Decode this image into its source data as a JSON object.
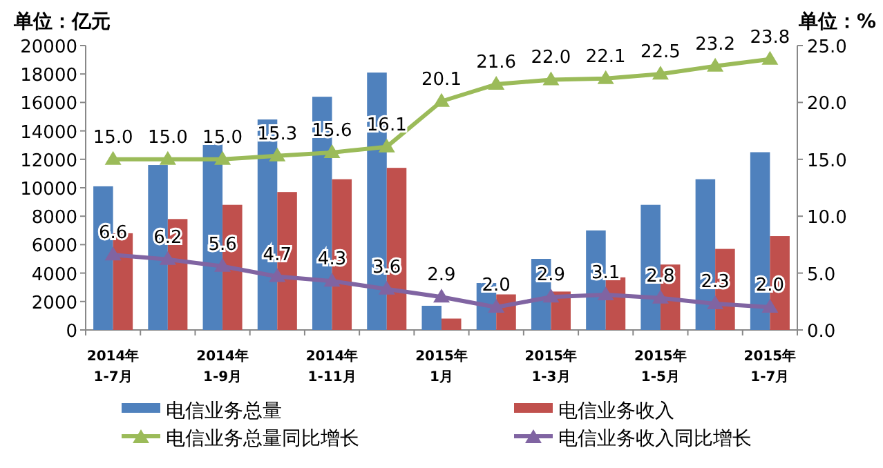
{
  "chart_data": {
    "type": "bar",
    "ylabel": "单位：亿元",
    "y2label": "单位：%",
    "categories": [
      "2014年\n1-7月",
      null,
      "2014年\n1-9月",
      null,
      "2014年\n1-11月",
      null,
      "2015年\n1月",
      null,
      "2015年\n1-3月",
      null,
      "2015年\n1-5月",
      null,
      "2015年\n1-7月"
    ],
    "series": [
      {
        "name": "电信业务总量",
        "color": "#4f81bd",
        "values": [
          10100,
          11600,
          13200,
          14800,
          16400,
          18100,
          1700,
          3300,
          5000,
          7000,
          8800,
          10600,
          12500
        ]
      },
      {
        "name": "电信业务收入",
        "color": "#c0504d",
        "values": [
          6800,
          7800,
          8800,
          9700,
          10600,
          11400,
          800,
          2500,
          2700,
          3700,
          4600,
          5700,
          6600
        ]
      },
      {
        "name": "电信业务总量同比增长",
        "type": "line",
        "axis": "y2",
        "marker": "triangle",
        "color": "#9bbb59",
        "values": [
          15.0,
          15.0,
          15.0,
          15.3,
          15.6,
          16.1,
          20.1,
          21.6,
          22.0,
          22.1,
          22.5,
          23.2,
          23.8
        ],
        "value_labels": [
          "15.0",
          "15.0",
          "15.0",
          "15.3",
          "15.6",
          "16.1",
          "20.1",
          "21.6",
          "22.0",
          "22.1",
          "22.5",
          "23.2",
          "23.8"
        ]
      },
      {
        "name": "电信业务收入同比增长",
        "type": "line",
        "axis": "y2",
        "marker": "triangle",
        "color": "#8064a2",
        "values": [
          6.6,
          6.2,
          5.6,
          4.7,
          4.3,
          3.6,
          2.9,
          2.0,
          2.9,
          3.1,
          2.8,
          2.3,
          2.0
        ],
        "value_labels": [
          "6.6",
          "6.2",
          "5.6",
          "4.7",
          "4.3",
          "3.6",
          "2.9",
          "2.0",
          "2.9",
          "3.1",
          "2.8",
          "2.3",
          "2.0"
        ]
      }
    ],
    "ylim": [
      0,
      20000
    ],
    "yticks": [
      0,
      2000,
      4000,
      6000,
      8000,
      10000,
      12000,
      14000,
      16000,
      18000,
      20000
    ],
    "y2lim": [
      0,
      25
    ],
    "y2ticks": [
      {
        "value": 0,
        "label": "0.0"
      },
      {
        "value": 5,
        "label": "5.0"
      },
      {
        "value": 10,
        "label": "10.0"
      },
      {
        "value": 15,
        "label": "15.0"
      },
      {
        "value": 20,
        "label": "20.0"
      },
      {
        "value": 25,
        "label": "25.0"
      }
    ],
    "legend": "bottom"
  }
}
